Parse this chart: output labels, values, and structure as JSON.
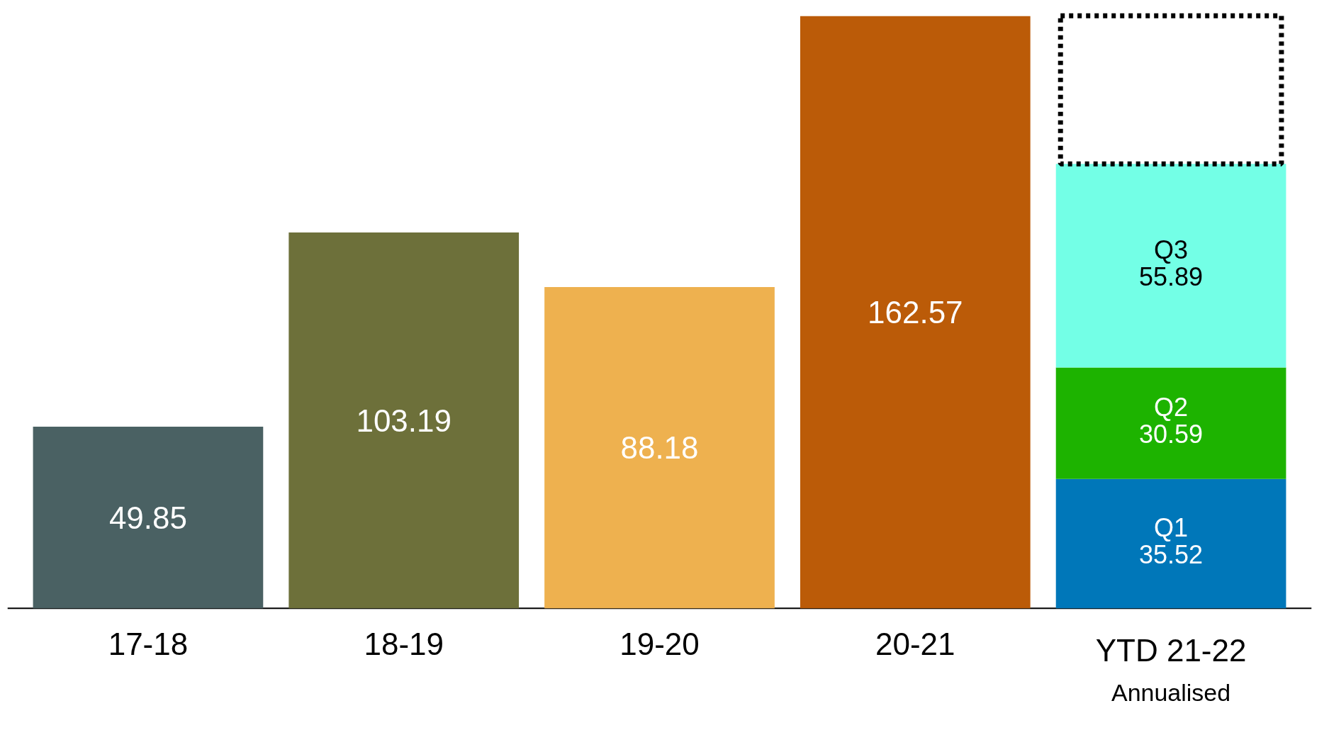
{
  "chart_data": {
    "type": "bar",
    "stacked": true,
    "categories": [
      "17-18",
      "18-19",
      "19-20",
      "20-21",
      "YTD 21-22"
    ],
    "series": [
      {
        "colors": [
          "#4a6163",
          "#6d703a",
          "#eeb14f",
          "#bb5b08",
          null
        ],
        "values": [
          49.85,
          103.19,
          88.18,
          162.57,
          null
        ],
        "value_labels": [
          "49.85",
          "103.19",
          "88.18",
          "162.57",
          null
        ]
      },
      {
        "name": "Q1",
        "color": "#0077b9",
        "values": [
          null,
          null,
          null,
          null,
          35.52
        ],
        "value_labels": [
          null,
          null,
          null,
          null,
          "35.52"
        ]
      },
      {
        "name": "Q2",
        "color": "#1db300",
        "values": [
          null,
          null,
          null,
          null,
          30.59
        ],
        "value_labels": [
          null,
          null,
          null,
          null,
          "30.59"
        ]
      },
      {
        "name": "Q3",
        "color": "#73ffe6",
        "values": [
          null,
          null,
          null,
          null,
          55.89
        ],
        "value_labels": [
          null,
          null,
          null,
          null,
          "55.89"
        ]
      },
      {
        "color": "#000000",
        "line_style": "dashed",
        "values": [
          null,
          null,
          null,
          null,
          40.67
        ]
      }
    ],
    "annotations": [
      "Annualised"
    ],
    "legend": false,
    "grid": false
  }
}
